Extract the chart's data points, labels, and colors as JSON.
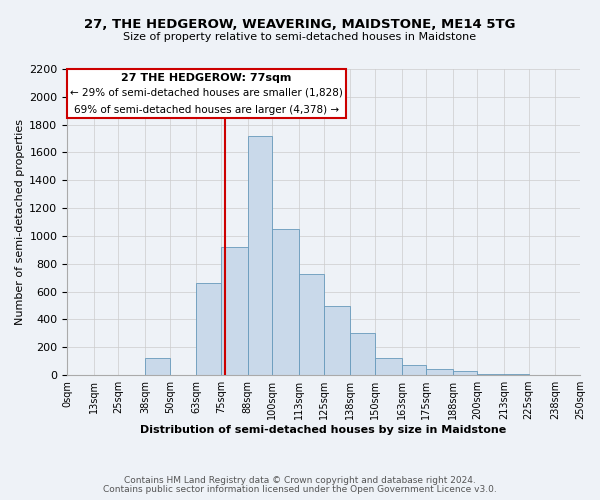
{
  "title": "27, THE HEDGEROW, WEAVERING, MAIDSTONE, ME14 5TG",
  "subtitle": "Size of property relative to semi-detached houses in Maidstone",
  "xlabel": "Distribution of semi-detached houses by size in Maidstone",
  "ylabel": "Number of semi-detached properties",
  "footer_line1": "Contains HM Land Registry data © Crown copyright and database right 2024.",
  "footer_line2": "Contains public sector information licensed under the Open Government Licence v3.0.",
  "annotation_title": "27 THE HEDGEROW: 77sqm",
  "annotation_line1": "← 29% of semi-detached houses are smaller (1,828)",
  "annotation_line2": "69% of semi-detached houses are larger (4,378) →",
  "bar_color": "#c9d9ea",
  "bar_edge_color": "#6699bb",
  "redline_x": 77,
  "categories": [
    "0sqm",
    "13sqm",
    "25sqm",
    "38sqm",
    "50sqm",
    "63sqm",
    "75sqm",
    "88sqm",
    "100sqm",
    "113sqm",
    "125sqm",
    "138sqm",
    "150sqm",
    "163sqm",
    "175sqm",
    "188sqm",
    "200sqm",
    "213sqm",
    "225sqm",
    "238sqm",
    "250sqm"
  ],
  "bin_edges": [
    0,
    13,
    25,
    38,
    50,
    63,
    75,
    88,
    100,
    113,
    125,
    138,
    150,
    163,
    175,
    188,
    200,
    213,
    225,
    238,
    250
  ],
  "bar_heights": [
    0,
    0,
    0,
    120,
    0,
    660,
    920,
    1720,
    1050,
    730,
    500,
    305,
    120,
    70,
    45,
    30,
    10,
    5,
    2,
    1
  ],
  "ylim": [
    0,
    2200
  ],
  "yticks": [
    0,
    200,
    400,
    600,
    800,
    1000,
    1200,
    1400,
    1600,
    1800,
    2000,
    2200
  ],
  "bg_color": "#eef2f7",
  "grid_color": "#cccccc",
  "annotation_box_facecolor": "#ffffff",
  "annotation_box_edgecolor": "#cc0000",
  "red_line_color": "#cc0000",
  "title_fontsize": 9.5,
  "subtitle_fontsize": 8,
  "xlabel_fontsize": 8,
  "ylabel_fontsize": 8,
  "footer_fontsize": 6.5,
  "annotation_title_fontsize": 8,
  "annotation_text_fontsize": 7.5
}
